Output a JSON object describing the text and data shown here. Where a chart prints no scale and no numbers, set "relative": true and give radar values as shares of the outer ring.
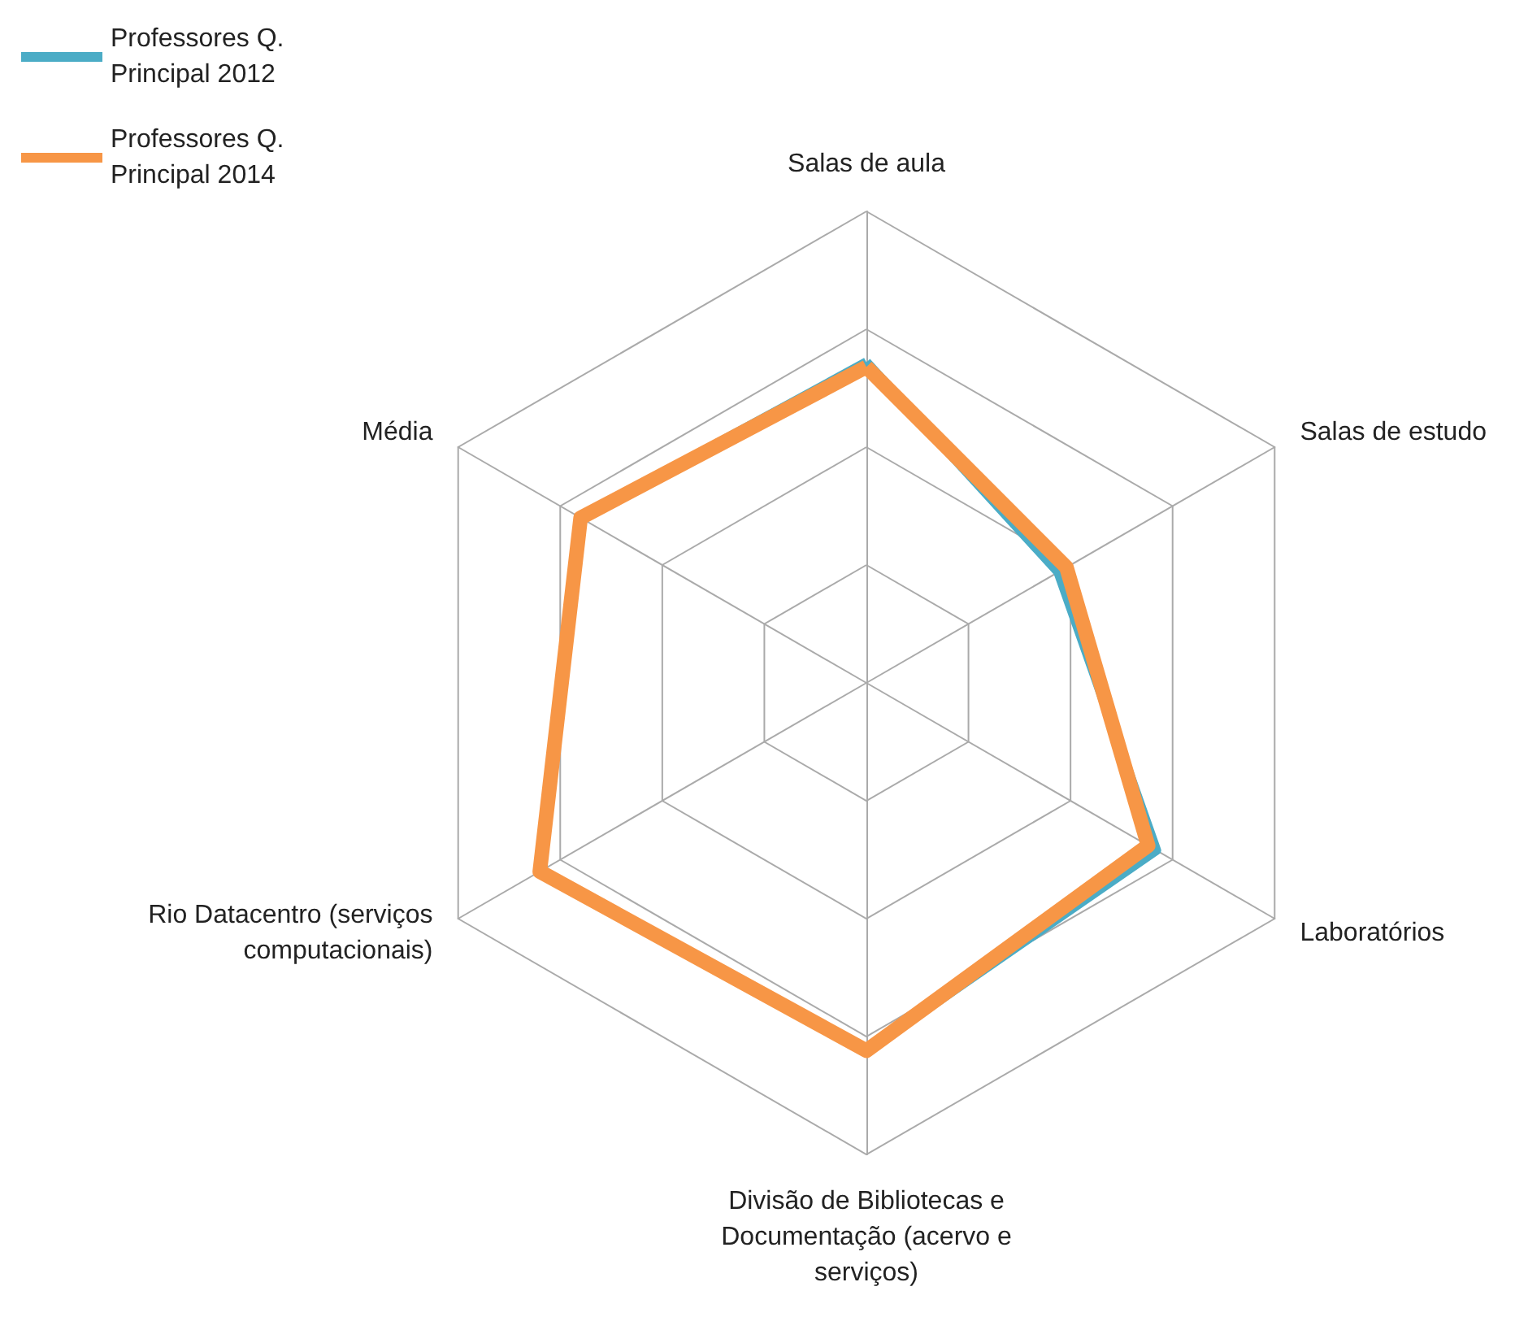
{
  "chart_data": {
    "type": "radar",
    "relative": true,
    "legend": "top left",
    "marker": "none",
    "line_style": "solid",
    "grid": true,
    "categories": [
      "Salas de aula",
      "Salas de estudo",
      "Laboratórios",
      "Divisão de Bibliotecas e Documentação (acervo e serviços)",
      "Rio Datacentro (serviços computacionais)",
      "Média"
    ],
    "series": [
      {
        "name": "Professores Q. Principal 2012",
        "color": "#4bacc6",
        "values": [
          0.68,
          0.47,
          0.71,
          0.78,
          0.8,
          0.7
        ]
      },
      {
        "name": "Professores Q. Principal 2014",
        "color": "#f79646",
        "values": [
          0.67,
          0.49,
          0.69,
          0.78,
          0.8,
          0.7
        ]
      }
    ]
  }
}
